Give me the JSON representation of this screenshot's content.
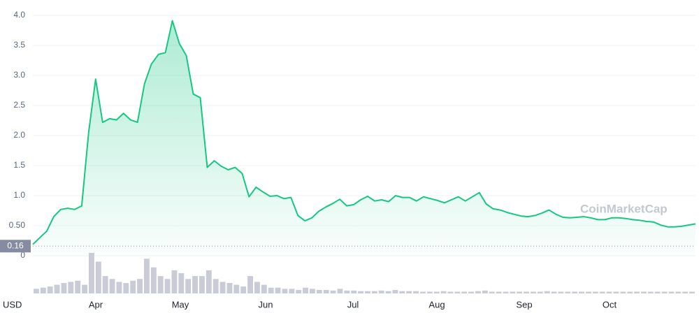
{
  "chart_data": {
    "type": "line",
    "currency": "USD",
    "watermark": "CoinMarketCap",
    "x_labels": [
      "Apr",
      "May",
      "Jun",
      "Jul",
      "Aug",
      "Sep",
      "Oct"
    ],
    "series": [
      {
        "color": "#16c784",
        "values": [
          0.19,
          0.3,
          0.41,
          0.65,
          0.77,
          0.79,
          0.77,
          0.83,
          2.05,
          2.94,
          2.22,
          2.28,
          2.26,
          2.37,
          2.26,
          2.22,
          2.86,
          3.19,
          3.35,
          3.38,
          3.91,
          3.53,
          3.33,
          2.69,
          2.63,
          1.47,
          1.58,
          1.49,
          1.43,
          1.47,
          1.37,
          0.98,
          1.14,
          1.06,
          0.99,
          1.0,
          0.95,
          0.97,
          0.67,
          0.58,
          0.63,
          0.74,
          0.81,
          0.87,
          0.94,
          0.83,
          0.85,
          0.93,
          0.99,
          0.91,
          0.93,
          0.9,
          1.0,
          0.97,
          0.97,
          0.91,
          0.98,
          0.95,
          0.92,
          0.88,
          0.93,
          0.98,
          0.91,
          0.98,
          1.05,
          0.86,
          0.78,
          0.76,
          0.72,
          0.69,
          0.66,
          0.65,
          0.67,
          0.71,
          0.76,
          0.69,
          0.64,
          0.63,
          0.64,
          0.65,
          0.63,
          0.6,
          0.6,
          0.63,
          0.63,
          0.62,
          0.6,
          0.59,
          0.57,
          0.56,
          0.51,
          0.48,
          0.48,
          0.49,
          0.51,
          0.53
        ]
      }
    ],
    "volume": {
      "color": "#c9ccd6",
      "values": [
        8,
        10,
        12,
        15,
        18,
        20,
        22,
        15,
        70,
        55,
        30,
        25,
        20,
        18,
        22,
        25,
        60,
        45,
        30,
        25,
        40,
        35,
        25,
        30,
        30,
        40,
        25,
        20,
        18,
        15,
        12,
        30,
        20,
        15,
        10,
        10,
        8,
        8,
        6,
        10,
        8,
        6,
        6,
        5,
        8,
        5,
        5,
        4,
        4,
        4,
        5,
        4,
        6,
        4,
        4,
        4,
        3,
        3,
        3,
        4,
        3,
        3,
        3,
        3,
        4,
        5,
        3,
        3,
        3,
        3,
        3,
        3,
        3,
        3,
        4,
        3,
        3,
        3,
        3,
        3,
        3,
        3,
        3,
        3,
        3,
        3,
        3,
        3,
        3,
        3,
        3,
        3,
        3,
        3,
        3,
        3
      ]
    },
    "start_price": 0.16,
    "ylim": [
      0,
      4.2
    ],
    "yticks": [
      0,
      {
        "value": 0.5,
        "label": "0.50"
      },
      {
        "value": 1,
        "label": "1.0"
      },
      1.5,
      {
        "value": 2,
        "label": "2.0"
      },
      2.5,
      {
        "value": 3,
        "label": "3.0"
      },
      3.5,
      {
        "value": 4,
        "label": "4.0"
      }
    ],
    "grid": true
  }
}
